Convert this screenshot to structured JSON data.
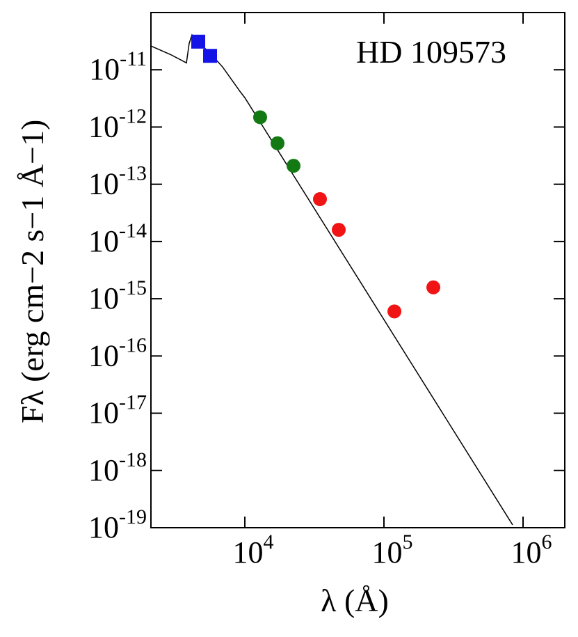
{
  "chart_data": {
    "type": "scatter",
    "annotation": "HD 109573",
    "x_label": "λ (Å)",
    "y_label": "Fλ (erg cm−2 s−1 Å−1)",
    "xscale": "log",
    "yscale": "log",
    "xlim": [
      2113,
      1995262
    ],
    "ylim": [
      1e-19,
      1e-10
    ],
    "xticks": [
      {
        "value": 10000,
        "label": "104"
      },
      {
        "value": 100000,
        "label": "105"
      },
      {
        "value": 1000000,
        "label": "106"
      }
    ],
    "yticks": [
      {
        "value": 1e-19,
        "label": "10-19"
      },
      {
        "value": 1e-18,
        "label": "10-18"
      },
      {
        "value": 1e-17,
        "label": "10-17"
      },
      {
        "value": 1e-16,
        "label": "10-16"
      },
      {
        "value": 1e-15,
        "label": "10-15"
      },
      {
        "value": 1e-14,
        "label": "10-14"
      },
      {
        "value": 1e-13,
        "label": "10-13"
      },
      {
        "value": 1e-12,
        "label": "10-12"
      },
      {
        "value": 1e-11,
        "label": "10-11"
      }
    ],
    "series": [
      {
        "marker": "line",
        "color": "#000000",
        "x": [
          2113,
          2917,
          3802,
          3981,
          4169,
          4467,
          5495,
          6918,
          9226,
          10000,
          841400
        ],
        "values": [
          2.6e-11,
          1.85e-11,
          1.32e-11,
          2.9e-11,
          4.07e-11,
          3.24e-11,
          2.07e-11,
          1.12e-11,
          4.19e-12,
          3.25e-12,
          1.12e-19
        ]
      },
      {
        "marker": "square",
        "color": "#1414e6",
        "x": [
          4624,
          5623
        ],
        "values": [
          3.1e-11,
          1.75e-11
        ]
      },
      {
        "marker": "circle",
        "color": "#137a13",
        "x": [
          12880,
          17180,
          22390
        ],
        "values": [
          1.48e-12,
          5.2e-13,
          2.1e-13
        ]
      },
      {
        "marker": "circle",
        "color": "#f01414",
        "x": [
          34670,
          47320,
          118900,
          226500
        ],
        "values": [
          5.5e-14,
          1.6e-14,
          6e-16,
          1.58e-15
        ]
      }
    ]
  }
}
